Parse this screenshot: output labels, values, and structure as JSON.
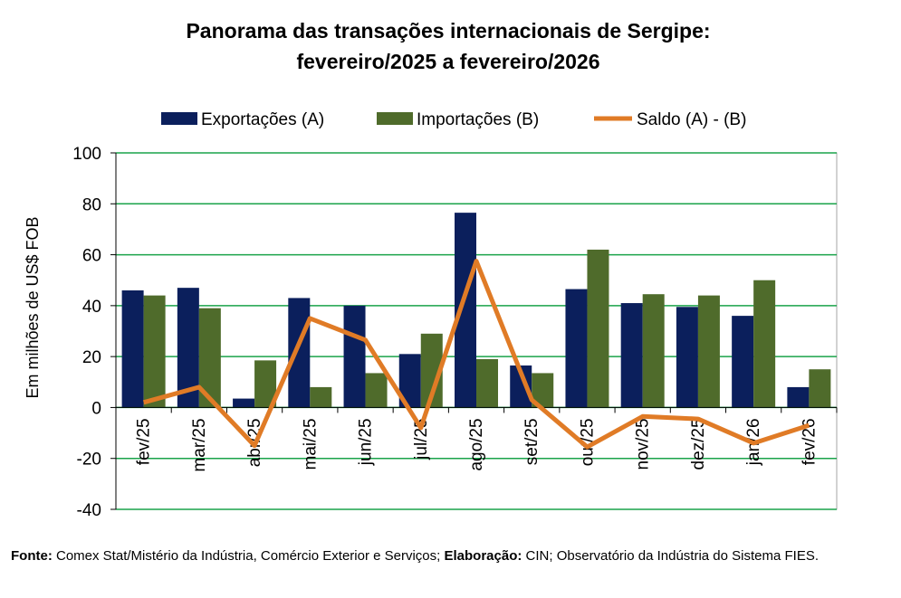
{
  "chart_data": {
    "type": "bar-line",
    "title": [
      "Panorama  das transações internacionais de Sergipe:",
      "fevereiro/2025 a fevereiro/2026"
    ],
    "y_label": "Em milhões de US$ FOB",
    "categories": [
      "fev/25",
      "mar/25",
      "abr/25",
      "mai/25",
      "jun/25",
      "jul/25",
      "ago/25",
      "set/25",
      "out/25",
      "nov/25",
      "dez/25",
      "jan/26",
      "fev/26"
    ],
    "series": [
      {
        "name": "Exportações (A)",
        "kind": "bar",
        "color": "#0b1f5c",
        "values": [
          46,
          47,
          3.5,
          43,
          40,
          21,
          76.5,
          16.5,
          46.5,
          41,
          39.5,
          36,
          8
        ]
      },
      {
        "name": "Importações (B)",
        "kind": "bar",
        "color": "#4f6b2b",
        "values": [
          44,
          39,
          18.5,
          8,
          13.5,
          29,
          19,
          13.5,
          62,
          44.5,
          44,
          50,
          15
        ]
      },
      {
        "name": "Saldo (A) - (B)",
        "kind": "line",
        "color": "#e07b26",
        "values": [
          2,
          8,
          -15,
          35,
          26.5,
          -8,
          57.5,
          3,
          -15.5,
          -3.5,
          -4.5,
          -14,
          -7
        ]
      }
    ],
    "ylim": [
      -40,
      100
    ],
    "yticks": [
      -40,
      -20,
      0,
      20,
      40,
      60,
      80,
      100
    ],
    "grid": true,
    "grid_color": "#1aa34a",
    "source": {
      "label": "Fonte:",
      "text": "Comex Stat/Mistério da Indústria, Comércio Exterior e Serviços;",
      "credit_label": "Elaboração:",
      "credit_text": "CIN; Observatório da Indústria do Sistema FIES."
    }
  }
}
